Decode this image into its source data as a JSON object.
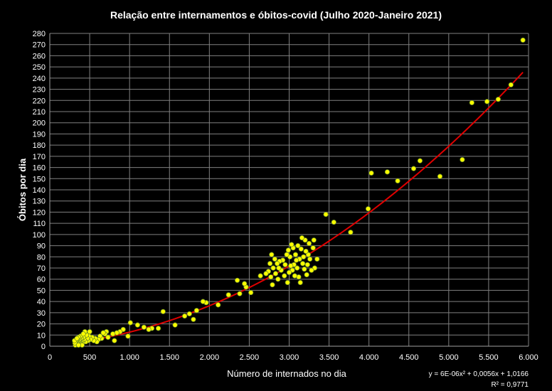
{
  "chart_data": {
    "type": "scatter",
    "title": "Relação entre internamentos e óbitos-covid (Julho 2020-Janeiro 2021)",
    "xlabel": "Número de internados no dia",
    "ylabel": "Óbitos por dia",
    "xlim": [
      0,
      6000
    ],
    "ylim": [
      0,
      280
    ],
    "x_ticks": [
      "0",
      "500",
      "1.000",
      "1.500",
      "2.000",
      "2.500",
      "3.000",
      "3.500",
      "4.000",
      "4.500",
      "5.000",
      "5.500",
      "6.000"
    ],
    "y_ticks": [
      "0",
      "10",
      "20",
      "30",
      "40",
      "50",
      "60",
      "70",
      "80",
      "90",
      "100",
      "110",
      "120",
      "130",
      "140",
      "150",
      "160",
      "170",
      "180",
      "190",
      "200",
      "210",
      "220",
      "230",
      "240",
      "250",
      "260",
      "270",
      "280"
    ],
    "grid": true,
    "marker_color": "#ffff00",
    "trend_color": "#e00000",
    "grid_color": "#808080",
    "trendline": {
      "type": "polynomial",
      "coefficients": [
        6e-06,
        0.0056,
        1.0166
      ],
      "x_range": [
        330,
        5930
      ],
      "equation_text": "y = 6E-06x² + 0,0056x + 1,0166",
      "r2_text": "R² = 0,9771"
    },
    "points": [
      [
        5930,
        274
      ],
      [
        5780,
        234
      ],
      [
        5620,
        221
      ],
      [
        5480,
        219
      ],
      [
        5290,
        218
      ],
      [
        5170,
        167
      ],
      [
        4890,
        152
      ],
      [
        4640,
        166
      ],
      [
        4560,
        159
      ],
      [
        4360,
        148
      ],
      [
        4230,
        156
      ],
      [
        4030,
        155
      ],
      [
        3990,
        123
      ],
      [
        3770,
        102
      ],
      [
        3560,
        111
      ],
      [
        3460,
        118
      ],
      [
        3350,
        78
      ],
      [
        3320,
        70
      ],
      [
        3310,
        95
      ],
      [
        3300,
        88
      ],
      [
        3280,
        68
      ],
      [
        3260,
        78
      ],
      [
        3250,
        92
      ],
      [
        3240,
        82
      ],
      [
        3230,
        73
      ],
      [
        3220,
        64
      ],
      [
        3210,
        85
      ],
      [
        3200,
        95
      ],
      [
        3190,
        69
      ],
      [
        3180,
        80
      ],
      [
        3170,
        74
      ],
      [
        3160,
        97
      ],
      [
        3150,
        87
      ],
      [
        3140,
        57
      ],
      [
        3130,
        78
      ],
      [
        3120,
        62
      ],
      [
        3110,
        90
      ],
      [
        3100,
        70
      ],
      [
        3090,
        77
      ],
      [
        3080,
        82
      ],
      [
        3070,
        63
      ],
      [
        3060,
        73
      ],
      [
        3050,
        88
      ],
      [
        3040,
        68
      ],
      [
        3030,
        91
      ],
      [
        3020,
        72
      ],
      [
        3010,
        80
      ],
      [
        3000,
        66
      ],
      [
        2990,
        86
      ],
      [
        2980,
        57
      ],
      [
        2970,
        82
      ],
      [
        2950,
        73
      ],
      [
        2940,
        63
      ],
      [
        2920,
        77
      ],
      [
        2900,
        68
      ],
      [
        2880,
        76
      ],
      [
        2870,
        70
      ],
      [
        2860,
        60
      ],
      [
        2850,
        74
      ],
      [
        2830,
        65
      ],
      [
        2820,
        78
      ],
      [
        2800,
        70
      ],
      [
        2790,
        55
      ],
      [
        2780,
        82
      ],
      [
        2770,
        62
      ],
      [
        2760,
        74
      ],
      [
        2740,
        67
      ],
      [
        2710,
        65
      ],
      [
        2640,
        63
      ],
      [
        2520,
        48
      ],
      [
        2460,
        53
      ],
      [
        2440,
        56
      ],
      [
        2380,
        47
      ],
      [
        2350,
        59
      ],
      [
        2240,
        46
      ],
      [
        2110,
        37
      ],
      [
        1960,
        39
      ],
      [
        1920,
        40
      ],
      [
        1840,
        32
      ],
      [
        1800,
        24
      ],
      [
        1750,
        29
      ],
      [
        1690,
        27
      ],
      [
        1570,
        19
      ],
      [
        1420,
        31
      ],
      [
        1360,
        16
      ],
      [
        1280,
        16
      ],
      [
        1240,
        15
      ],
      [
        1180,
        17
      ],
      [
        1100,
        19
      ],
      [
        1010,
        21
      ],
      [
        980,
        9
      ],
      [
        920,
        15
      ],
      [
        880,
        13
      ],
      [
        840,
        12
      ],
      [
        810,
        5
      ],
      [
        790,
        11
      ],
      [
        730,
        8
      ],
      [
        710,
        13
      ],
      [
        690,
        11
      ],
      [
        670,
        12
      ],
      [
        650,
        7
      ],
      [
        630,
        9
      ],
      [
        610,
        6
      ],
      [
        590,
        4
      ],
      [
        570,
        7
      ],
      [
        550,
        5
      ],
      [
        530,
        8
      ],
      [
        510,
        6
      ],
      [
        500,
        13
      ],
      [
        490,
        9
      ],
      [
        480,
        5
      ],
      [
        470,
        7
      ],
      [
        460,
        10
      ],
      [
        450,
        4
      ],
      [
        440,
        13
      ],
      [
        430,
        6
      ],
      [
        420,
        8
      ],
      [
        410,
        3
      ],
      [
        400,
        5
      ],
      [
        395,
        7
      ],
      [
        390,
        2
      ],
      [
        385,
        9
      ],
      [
        380,
        4
      ],
      [
        375,
        6
      ],
      [
        370,
        3
      ],
      [
        365,
        5
      ],
      [
        360,
        8
      ],
      [
        355,
        2
      ],
      [
        350,
        4
      ],
      [
        345,
        6
      ],
      [
        340,
        3
      ],
      [
        335,
        5
      ],
      [
        330,
        2
      ],
      [
        325,
        4
      ],
      [
        320,
        1
      ],
      [
        315,
        3
      ],
      [
        310,
        5
      ],
      [
        405,
        1
      ],
      [
        360,
        1
      ],
      [
        340,
        7
      ],
      [
        420,
        11
      ]
    ]
  }
}
